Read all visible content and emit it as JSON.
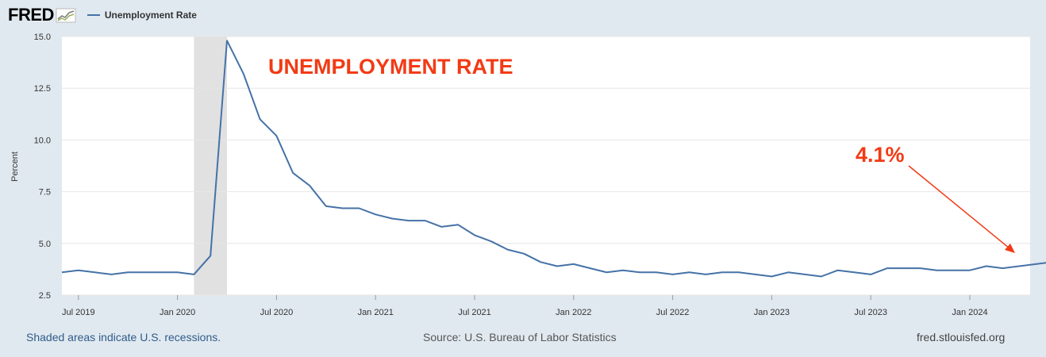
{
  "header": {
    "logo_text": "FRED",
    "legend_label": "Unemployment Rate"
  },
  "colors": {
    "series": "#4572a7",
    "annotation": "#f23a14",
    "recession": "#e1e1e1",
    "background": "#e1e9f0"
  },
  "icons": {
    "logo": "fred-chart-logo-icon",
    "arrow": "arrow-icon"
  },
  "chart_data": {
    "type": "line",
    "title": "",
    "xlabel": "",
    "ylabel": "Percent",
    "ylim": [
      2.5,
      15.0
    ],
    "yticks": [
      "2.5",
      "5.0",
      "7.5",
      "10.0",
      "12.5",
      "15.0"
    ],
    "xticks": [
      "Jul 2019",
      "Jan 2020",
      "Jul 2020",
      "Jan 2021",
      "Jul 2021",
      "Jan 2022",
      "Jul 2022",
      "Jan 2023",
      "Jul 2023",
      "Jan 2024"
    ],
    "grid": true,
    "recession": {
      "start": "2020-02",
      "end": "2020-04"
    },
    "series": [
      {
        "name": "Unemployment Rate",
        "x": [
          "2019-06",
          "2019-07",
          "2019-08",
          "2019-09",
          "2019-10",
          "2019-11",
          "2019-12",
          "2020-01",
          "2020-02",
          "2020-03",
          "2020-04",
          "2020-05",
          "2020-06",
          "2020-07",
          "2020-08",
          "2020-09",
          "2020-10",
          "2020-11",
          "2020-12",
          "2021-01",
          "2021-02",
          "2021-03",
          "2021-04",
          "2021-05",
          "2021-06",
          "2021-07",
          "2021-08",
          "2021-09",
          "2021-10",
          "2021-11",
          "2021-12",
          "2022-01",
          "2022-02",
          "2022-03",
          "2022-04",
          "2022-05",
          "2022-06",
          "2022-07",
          "2022-08",
          "2022-09",
          "2022-10",
          "2022-11",
          "2022-12",
          "2023-01",
          "2023-02",
          "2023-03",
          "2023-04",
          "2023-05",
          "2023-06",
          "2023-07",
          "2023-08",
          "2023-09",
          "2023-10",
          "2023-11",
          "2023-12",
          "2024-01",
          "2024-02",
          "2024-03",
          "2024-04",
          "2024-05",
          "2024-06"
        ],
        "values": [
          3.6,
          3.7,
          3.6,
          3.5,
          3.6,
          3.6,
          3.6,
          3.6,
          3.5,
          4.4,
          14.8,
          13.2,
          11.0,
          10.2,
          8.4,
          7.8,
          6.8,
          6.7,
          6.7,
          6.4,
          6.2,
          6.1,
          6.1,
          5.8,
          5.9,
          5.4,
          5.1,
          4.7,
          4.5,
          4.1,
          3.9,
          4.0,
          3.8,
          3.6,
          3.7,
          3.6,
          3.6,
          3.5,
          3.6,
          3.5,
          3.6,
          3.6,
          3.5,
          3.4,
          3.6,
          3.5,
          3.4,
          3.7,
          3.6,
          3.5,
          3.8,
          3.8,
          3.8,
          3.7,
          3.7,
          3.7,
          3.9,
          3.8,
          3.9,
          4.0,
          4.1
        ]
      }
    ],
    "annotations": [
      {
        "text": "UNEMPLOYMENT RATE"
      },
      {
        "text": "4.1%"
      }
    ]
  },
  "footer": {
    "recession_note": "Shaded areas indicate U.S. recessions.",
    "source": "Source: U.S. Bureau of Labor Statistics",
    "site": "fred.stlouisfed.org"
  }
}
